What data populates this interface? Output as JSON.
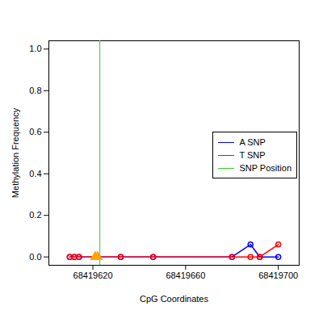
{
  "chart_data": {
    "type": "line",
    "x_label": "CpG Coordinates",
    "y_label": "Methylation Frequency",
    "x": [
      68419610,
      68419612,
      68419614,
      68419622,
      68419632,
      68419646,
      68419680,
      68419688,
      68419692,
      68419700
    ],
    "series": [
      {
        "name": "A SNP",
        "color": "blue",
        "marker": "circle",
        "values": [
          0,
          0,
          0,
          0,
          0,
          0,
          0,
          0.06,
          0,
          0
        ]
      },
      {
        "name": "T SNP",
        "color": "red",
        "marker": "circle",
        "values": [
          0,
          0,
          0,
          0,
          0,
          0,
          0,
          0,
          0,
          0.06
        ]
      }
    ],
    "snp_position": {
      "name": "SNP Position",
      "color": "limegreen",
      "x": 68419623
    },
    "snp_markers": {
      "color": "orange",
      "marker": "triangle",
      "x": [
        68419621,
        68419622
      ],
      "values": [
        0,
        0
      ]
    },
    "xlim": [
      68419601,
      68419709
    ],
    "ylim": [
      -0.04,
      1.04
    ],
    "xticks": [
      68419620,
      68419660,
      68419700
    ],
    "yticks": [
      {
        "value": 0,
        "label": "0.0"
      },
      0.2,
      0.4,
      0.6,
      0.8,
      {
        "value": 1,
        "label": "1.0"
      }
    ],
    "legend": "right",
    "grid": false
  }
}
